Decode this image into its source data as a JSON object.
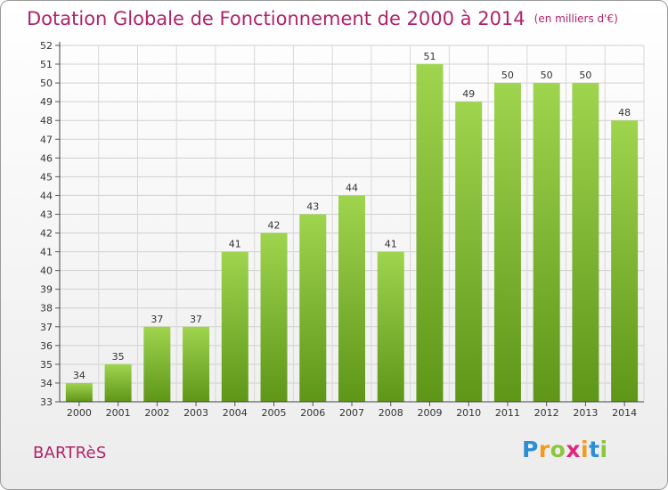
{
  "chart_data": {
    "type": "bar",
    "title": "Dotation Globale de Fonctionnement de 2000 à 2014",
    "subtitle": "(en milliers d'€)",
    "categories": [
      "2000",
      "2001",
      "2002",
      "2003",
      "2004",
      "2005",
      "2006",
      "2007",
      "2008",
      "2009",
      "2010",
      "2011",
      "2012",
      "2013",
      "2014"
    ],
    "values": [
      34,
      35,
      37,
      37,
      41,
      42,
      43,
      44,
      41,
      51,
      49,
      50,
      50,
      50,
      48
    ],
    "ylim": [
      33,
      52
    ],
    "yticks": [
      33,
      34,
      35,
      36,
      37,
      38,
      39,
      40,
      41,
      42,
      43,
      44,
      45,
      46,
      47,
      48,
      49,
      50,
      51,
      52
    ],
    "grid": true,
    "bar_color": "#7ab52e"
  },
  "commune": "BARTRèS",
  "logo": {
    "text": "Proxiti",
    "letters": [
      {
        "ch": "P",
        "color": "#2c8fd6"
      },
      {
        "ch": "r",
        "color": "#f39a1e"
      },
      {
        "ch": "o",
        "color": "#8cc63f"
      },
      {
        "ch": "x",
        "color": "#e2287e"
      },
      {
        "ch": "i",
        "color": "#f39a1e"
      },
      {
        "ch": "t",
        "color": "#2c8fd6"
      },
      {
        "ch": "i",
        "color": "#8cc63f"
      }
    ]
  }
}
